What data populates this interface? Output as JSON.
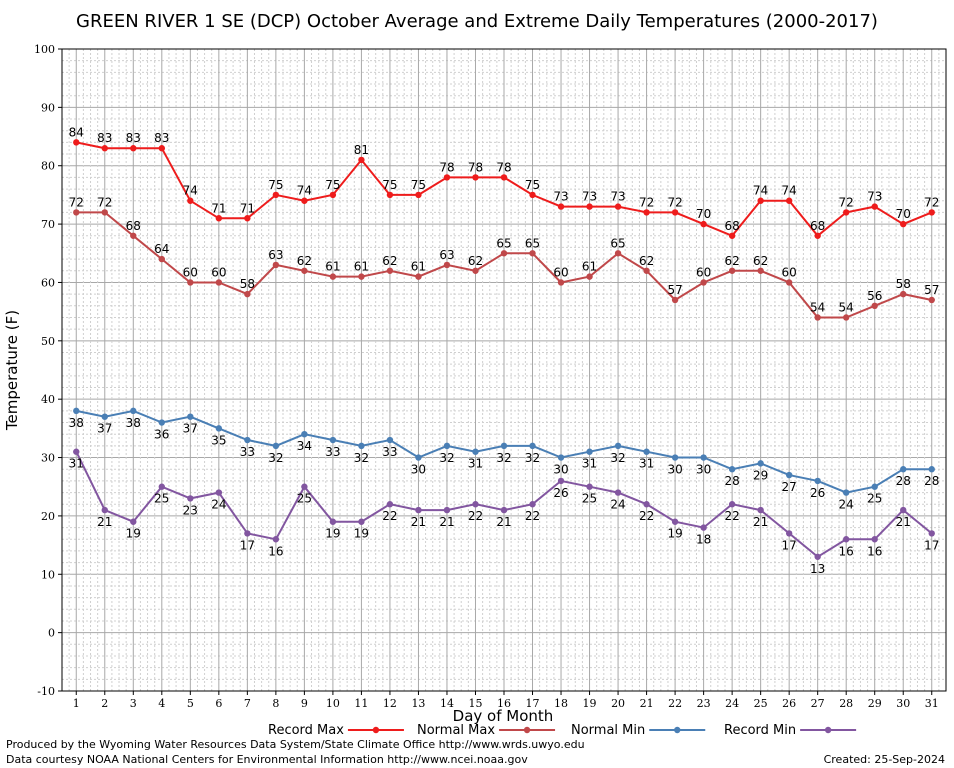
{
  "chart_data": {
    "type": "line",
    "title": "GREEN RIVER 1 SE (DCP) October Average and Extreme Daily Temperatures (2000-2017)",
    "xlabel": "Day of Month",
    "ylabel": "Temperature (F)",
    "xlim": [
      0.5,
      31.5
    ],
    "ylim": [
      -10,
      100
    ],
    "yticks": [
      -10,
      0,
      10,
      20,
      30,
      40,
      50,
      60,
      70,
      80,
      90,
      100
    ],
    "grid": true,
    "legend_position": "bottom",
    "x": [
      1,
      2,
      3,
      4,
      5,
      6,
      7,
      8,
      9,
      10,
      11,
      12,
      13,
      14,
      15,
      16,
      17,
      18,
      19,
      20,
      21,
      22,
      23,
      24,
      25,
      26,
      27,
      28,
      29,
      30,
      31
    ],
    "series": [
      {
        "name": "Record Max",
        "color": "#ee1c1c",
        "label_position": "above",
        "values": [
          84,
          83,
          83,
          83,
          74,
          71,
          71,
          75,
          74,
          75,
          81,
          75,
          75,
          78,
          78,
          78,
          75,
          73,
          73,
          73,
          72,
          72,
          70,
          68,
          74,
          74,
          68,
          72,
          73,
          70,
          72
        ]
      },
      {
        "name": "Normal Max",
        "color": "#c0484a",
        "label_position": "above",
        "values": [
          72,
          72,
          68,
          64,
          60,
          60,
          58,
          63,
          62,
          61,
          61,
          62,
          61,
          63,
          62,
          65,
          65,
          60,
          61,
          65,
          62,
          57,
          60,
          62,
          62,
          60,
          54,
          54,
          56,
          58,
          57
        ]
      },
      {
        "name": "Normal Min",
        "color": "#4a7fb5",
        "label_position": "below",
        "values": [
          38,
          37,
          38,
          36,
          37,
          35,
          33,
          32,
          34,
          33,
          32,
          33,
          30,
          32,
          31,
          32,
          32,
          30,
          31,
          32,
          31,
          30,
          30,
          28,
          29,
          27,
          26,
          24,
          25,
          28,
          28
        ]
      },
      {
        "name": "Record Min",
        "color": "#8256a0",
        "label_position": "below",
        "values": [
          31,
          21,
          19,
          25,
          23,
          24,
          17,
          16,
          25,
          19,
          19,
          22,
          21,
          21,
          22,
          21,
          22,
          26,
          25,
          24,
          22,
          19,
          18,
          22,
          21,
          17,
          13,
          16,
          16,
          21,
          17
        ]
      }
    ]
  },
  "footer": {
    "produced_by": "Produced by the Wyoming Water Resources Data System/State Climate Office http://www.wrds.uwyo.edu",
    "data_courtesy": "Data courtesy NOAA National Centers for Environmental Information http://www.ncei.noaa.gov",
    "created": "Created:  25-Sep-2024"
  }
}
